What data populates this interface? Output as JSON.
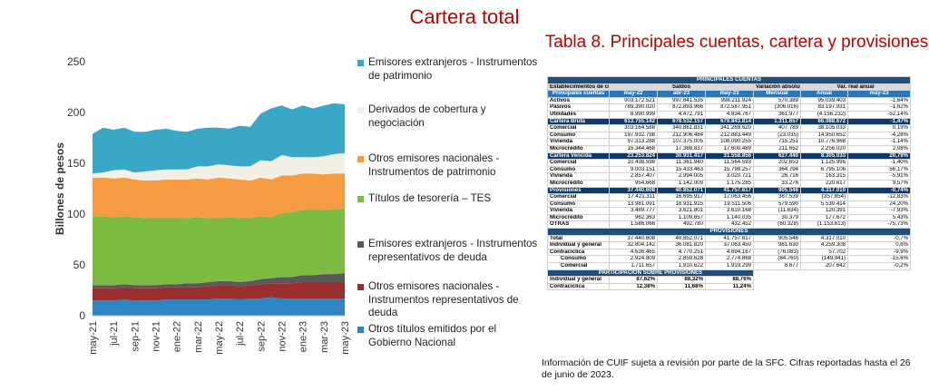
{
  "main_title": "Cartera total",
  "chart_data": {
    "type": "area",
    "stacked": true,
    "ylabel": "Billones de pesos",
    "ylim": [
      0,
      250
    ],
    "yticks": [
      "0",
      "50",
      "100",
      "150",
      "200",
      "250"
    ],
    "grid": false,
    "legend_position": "right",
    "x": [
      "may-21",
      "jun-21",
      "jul-21",
      "ago-21",
      "sep-21",
      "oct-21",
      "nov-21",
      "dic-21",
      "ene-22",
      "feb-22",
      "mar-22",
      "abr-22",
      "may-22",
      "jun-22",
      "jul-22",
      "ago-22",
      "sep-22",
      "oct-22",
      "nov-22",
      "dic-22",
      "ene-23",
      "feb-23",
      "mar-23",
      "abr-23",
      "may-23"
    ],
    "xticklabels": [
      "may-21",
      "jul-21",
      "sep-21",
      "nov-21",
      "ene-22",
      "mar-22",
      "may-22",
      "jul-22",
      "sep-22",
      "nov-22",
      "ene-23",
      "mar-23",
      "may-23"
    ],
    "series": [
      {
        "name": "Otros títulos emitidos por el Gobierno Nacional",
        "color": "#2e86c1",
        "values": [
          15,
          15,
          15,
          16,
          15,
          15,
          15,
          16,
          16,
          16,
          16,
          16,
          17,
          17,
          16,
          17,
          17,
          18,
          17,
          17,
          17,
          17,
          17,
          17,
          17
        ]
      },
      {
        "name": "Otros emisores nacionales - Instrumentos representativos de deuda",
        "color": "#9b2f2f",
        "values": [
          12,
          12,
          12,
          12,
          12,
          12,
          12,
          12,
          12,
          12,
          12,
          13,
          13,
          13,
          13,
          13,
          14,
          14,
          15,
          15,
          16,
          16,
          16,
          16,
          16
        ]
      },
      {
        "name": "Emisores extranjeros - Instrumentos representativos de deuda",
        "color": "#595959",
        "values": [
          3,
          3,
          3,
          3,
          3,
          3,
          3,
          3,
          3,
          4,
          4,
          4,
          4,
          4,
          4,
          4,
          5,
          5,
          6,
          6,
          7,
          7,
          8,
          8,
          9
        ]
      },
      {
        "name": "Títulos de tesorería – TES",
        "color": "#7dbb42",
        "values": [
          68,
          68,
          67,
          67,
          67,
          66,
          66,
          65,
          65,
          64,
          65,
          63,
          62,
          63,
          63,
          62,
          62,
          60,
          63,
          64,
          64,
          64,
          63,
          64,
          63
        ]
      },
      {
        "name": "Otros emisores nacionales - Instrumentos de patrimonio",
        "color": "#f59b42",
        "values": [
          38,
          38,
          38,
          38,
          37,
          37,
          37,
          38,
          38,
          38,
          38,
          38,
          40,
          38,
          38,
          37,
          38,
          37,
          37,
          36,
          36,
          36,
          35,
          35,
          35
        ]
      },
      {
        "name": "Derivados de cobertura y negociación",
        "color": "#f2f0e6",
        "values": [
          4,
          5,
          8,
          8,
          7,
          9,
          10,
          10,
          10,
          10,
          12,
          13,
          13,
          13,
          13,
          14,
          17,
          18,
          20,
          18,
          16,
          16,
          18,
          19,
          20
        ]
      },
      {
        "name": "Emisores extranjeros - Instrumentos de patrimonio",
        "color": "#3ba7c6",
        "values": [
          39,
          44,
          40,
          41,
          40,
          39,
          40,
          40,
          38,
          37,
          37,
          38,
          36,
          36,
          40,
          39,
          46,
          52,
          49,
          47,
          51,
          48,
          50,
          50,
          48
        ]
      }
    ],
    "legend_order": [
      6,
      5,
      4,
      3,
      2,
      1,
      0
    ]
  },
  "table": {
    "title": "Tabla 8. Principales cuentas, cartera y provisiones",
    "top_header": "PRINCIPALES CUENTAS",
    "col_group_1": "Establecimientos de crédito + FNA",
    "col_group_2": "Saldos",
    "col_group_3": "Variación absoluta (millones)",
    "col_group_4": "Var. real anual",
    "sub_header": [
      "Principales cuentas",
      "may-22",
      "abr-23",
      "may-23",
      "Mensual",
      "Anual",
      "may-23"
    ],
    "rows_main": [
      [
        "Activos",
        "903.172.521",
        "997.641.535",
        "998.211.924",
        "570.389",
        "95.039.403",
        "-1,64%"
      ],
      [
        "Pasivos",
        "789.390.020",
        "872.893.966",
        "872.587.951",
        "(306.016)",
        "83.197.931",
        "-1,62%"
      ],
      [
        "Utilidades",
        "8.990.999",
        "4.472.791",
        "4.834.767",
        "361.977",
        "(4.156.232)",
        "-52,14%"
      ]
    ],
    "cartera_bruta": [
      "Cartera Bruta",
      "613.755.142",
      "678.532.157",
      "679.843.814",
      "1.311.657",
      "66.088.672",
      "-1,47%"
    ],
    "rows_bruta": [
      [
        "Comercial",
        "303.164.588",
        "340.861.831",
        "341.269.620",
        "407.789",
        "38.105.033",
        "0,19%"
      ],
      [
        "Consumo",
        "197.932.798",
        "212.906.484",
        "212.883.449",
        "(23.035)",
        "14.950.652",
        "-4,28%"
      ],
      [
        "Vivienda",
        "97.313.288",
        "107.375.005",
        "108.090.255",
        "715.251",
        "10.776.968",
        "-1,14%"
      ],
      [
        "Microcrédito",
        "15.344.468",
        "17.388.837",
        "17.600.489",
        "211.652",
        "2.256.020",
        "2,08%"
      ]
    ],
    "cartera_vencida": [
      "Cartera Vencida",
      "23.253.824",
      "30.931.417",
      "31.558.856",
      "627.440",
      "8.305.033",
      "20,79%"
    ],
    "rows_vencida": [
      [
        "Comercial",
        "10.438.598",
        "11.361.940",
        "11.564.593",
        "202.653",
        "1.125.995",
        "-1,40%"
      ],
      [
        "Consumo",
        "9.003.151",
        "15.433.463",
        "15.798.257",
        "364.794",
        "6.795.106",
        "56,17%"
      ],
      [
        "Vivienda",
        "2.857.407",
        "2.994.005",
        "3.020.721",
        "26.716",
        "163.315",
        "-5,91%"
      ],
      [
        "Microcrédito",
        "954.668",
        "1.142.009",
        "1.175.285",
        "33.276",
        "220.617",
        "9,57%"
      ]
    ],
    "provisiones": [
      "Provisiones",
      "37.440.608",
      "40.852.071",
      "41.757.617",
      "905.546",
      "4.317.010",
      "-0,74%"
    ],
    "rows_prov": [
      [
        "Comercial",
        "17.421.311",
        "16.695.917",
        "17.063.456",
        "367.539",
        "(357.854)",
        "-12,83%"
      ],
      [
        "Consumo",
        "13.981.091",
        "18.931.915",
        "19.511.506",
        "579.590",
        "5.530.414",
        "24,20%"
      ],
      [
        "Vivienda",
        "3.489.777",
        "3.621.801",
        "3.610.168",
        "(11.634)",
        "120.391",
        "-7,93%"
      ],
      [
        "Microcrédito",
        "962.363",
        "1.109.657",
        "1.140.035",
        "30.379",
        "177.672",
        "5,43%"
      ],
      [
        "OTRAS",
        "1.586.066",
        "492.780",
        "432.452",
        "(60.328)",
        "(1.153.613)",
        "-75,73%"
      ]
    ],
    "sec_prov": "PROVISIONES",
    "rows_prov2": [
      [
        "Total",
        "37.440.608",
        "40.852.071",
        "41.757.617",
        "905.546",
        "4.317.010",
        "-0,7%"
      ],
      [
        "Individual y general",
        "32.804.142",
        "36.081.820",
        "37.063.450",
        "981.630",
        "4.259.308",
        "0,6%"
      ],
      [
        "Contracíclica",
        "4.636.465",
        "4.770.251",
        "4.694.167",
        "(76.083)",
        "57.702",
        "-9,9%"
      ]
    ],
    "rows_prov2_ind": [
      [
        "Consumo",
        "2.924.809",
        "2.859.628",
        "2.774.868",
        "(84.760)",
        "(149.941)",
        "-15,6%"
      ],
      [
        "Comercial",
        "1.711.657",
        "1.910.622",
        "1.919.299",
        "8.677",
        "207.642",
        "-0,2%"
      ]
    ],
    "sec_part": "PARTICIPACIÓN SOBRE PROVISIONES",
    "rows_part": [
      [
        "Individual y general",
        "87,62%",
        "88,32%",
        "88,76%"
      ],
      [
        "Contracíclica",
        "12,38%",
        "11,68%",
        "11,24%"
      ]
    ]
  },
  "footnote": "Información de CUIF sujeta a revisión por parte de la SFC. Cifras reportadas hasta el 26 de junio de 2023."
}
